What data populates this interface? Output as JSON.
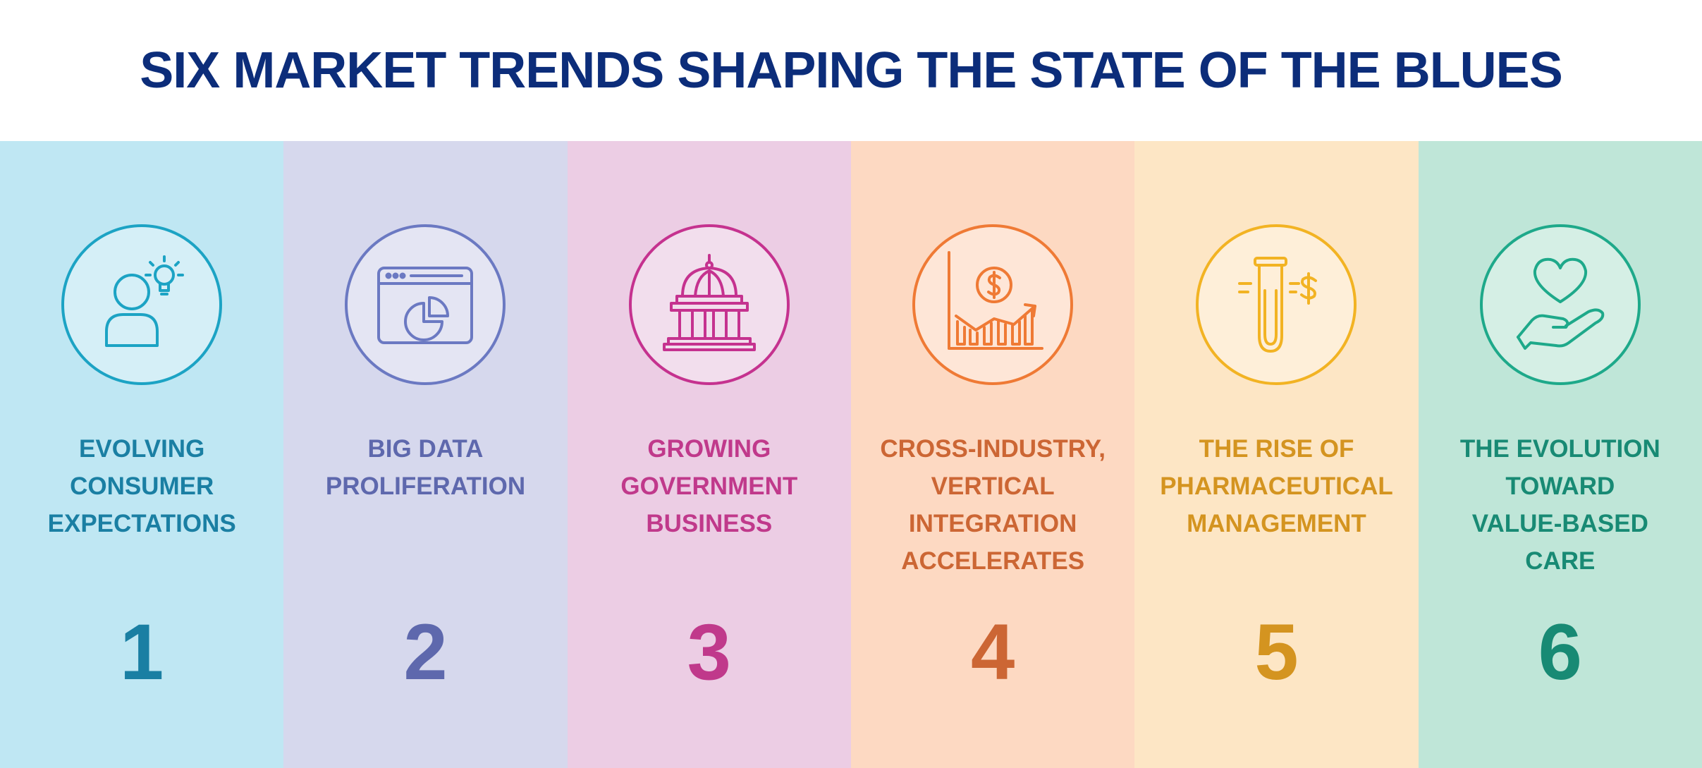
{
  "title": "SIX MARKET TRENDS SHAPING THE STATE OF THE BLUES",
  "trends": [
    {
      "number": "1",
      "lines": [
        "EVOLVING",
        "CONSUMER",
        "EXPECTATIONS"
      ],
      "icon": "consumer-idea-icon",
      "bg": "#bfe7f3",
      "accent": "#1ca3c4",
      "text": "#1a7fa3"
    },
    {
      "number": "2",
      "lines": [
        "BIG DATA",
        "PROLIFERATION"
      ],
      "icon": "browser-pie-chart-icon",
      "bg": "#d6d8ed",
      "accent": "#6b79c2",
      "text": "#5e68ad"
    },
    {
      "number": "3",
      "lines": [
        "GROWING",
        "GOVERNMENT",
        "BUSINESS"
      ],
      "icon": "capitol-building-icon",
      "bg": "#eccde4",
      "accent": "#c5328f",
      "text": "#c0398b"
    },
    {
      "number": "4",
      "lines": [
        "CROSS-INDUSTRY,",
        "VERTICAL",
        "INTEGRATION",
        "ACCELERATES"
      ],
      "icon": "dollar-growth-chart-icon",
      "bg": "#fdd9c2",
      "accent": "#ef7a35",
      "text": "#cc6634"
    },
    {
      "number": "5",
      "lines": [
        "THE RISE OF",
        "PHARMACEUTICAL",
        "MANAGEMENT"
      ],
      "icon": "test-tube-dollar-icon",
      "bg": "#fde6c5",
      "accent": "#f2b323",
      "text": "#d49420"
    },
    {
      "number": "6",
      "lines": [
        "THE EVOLUTION",
        "TOWARD",
        "VALUE-BASED",
        "CARE"
      ],
      "icon": "heart-in-hand-icon",
      "bg": "#bfe6d8",
      "accent": "#1ea98a",
      "text": "#188a74"
    }
  ]
}
